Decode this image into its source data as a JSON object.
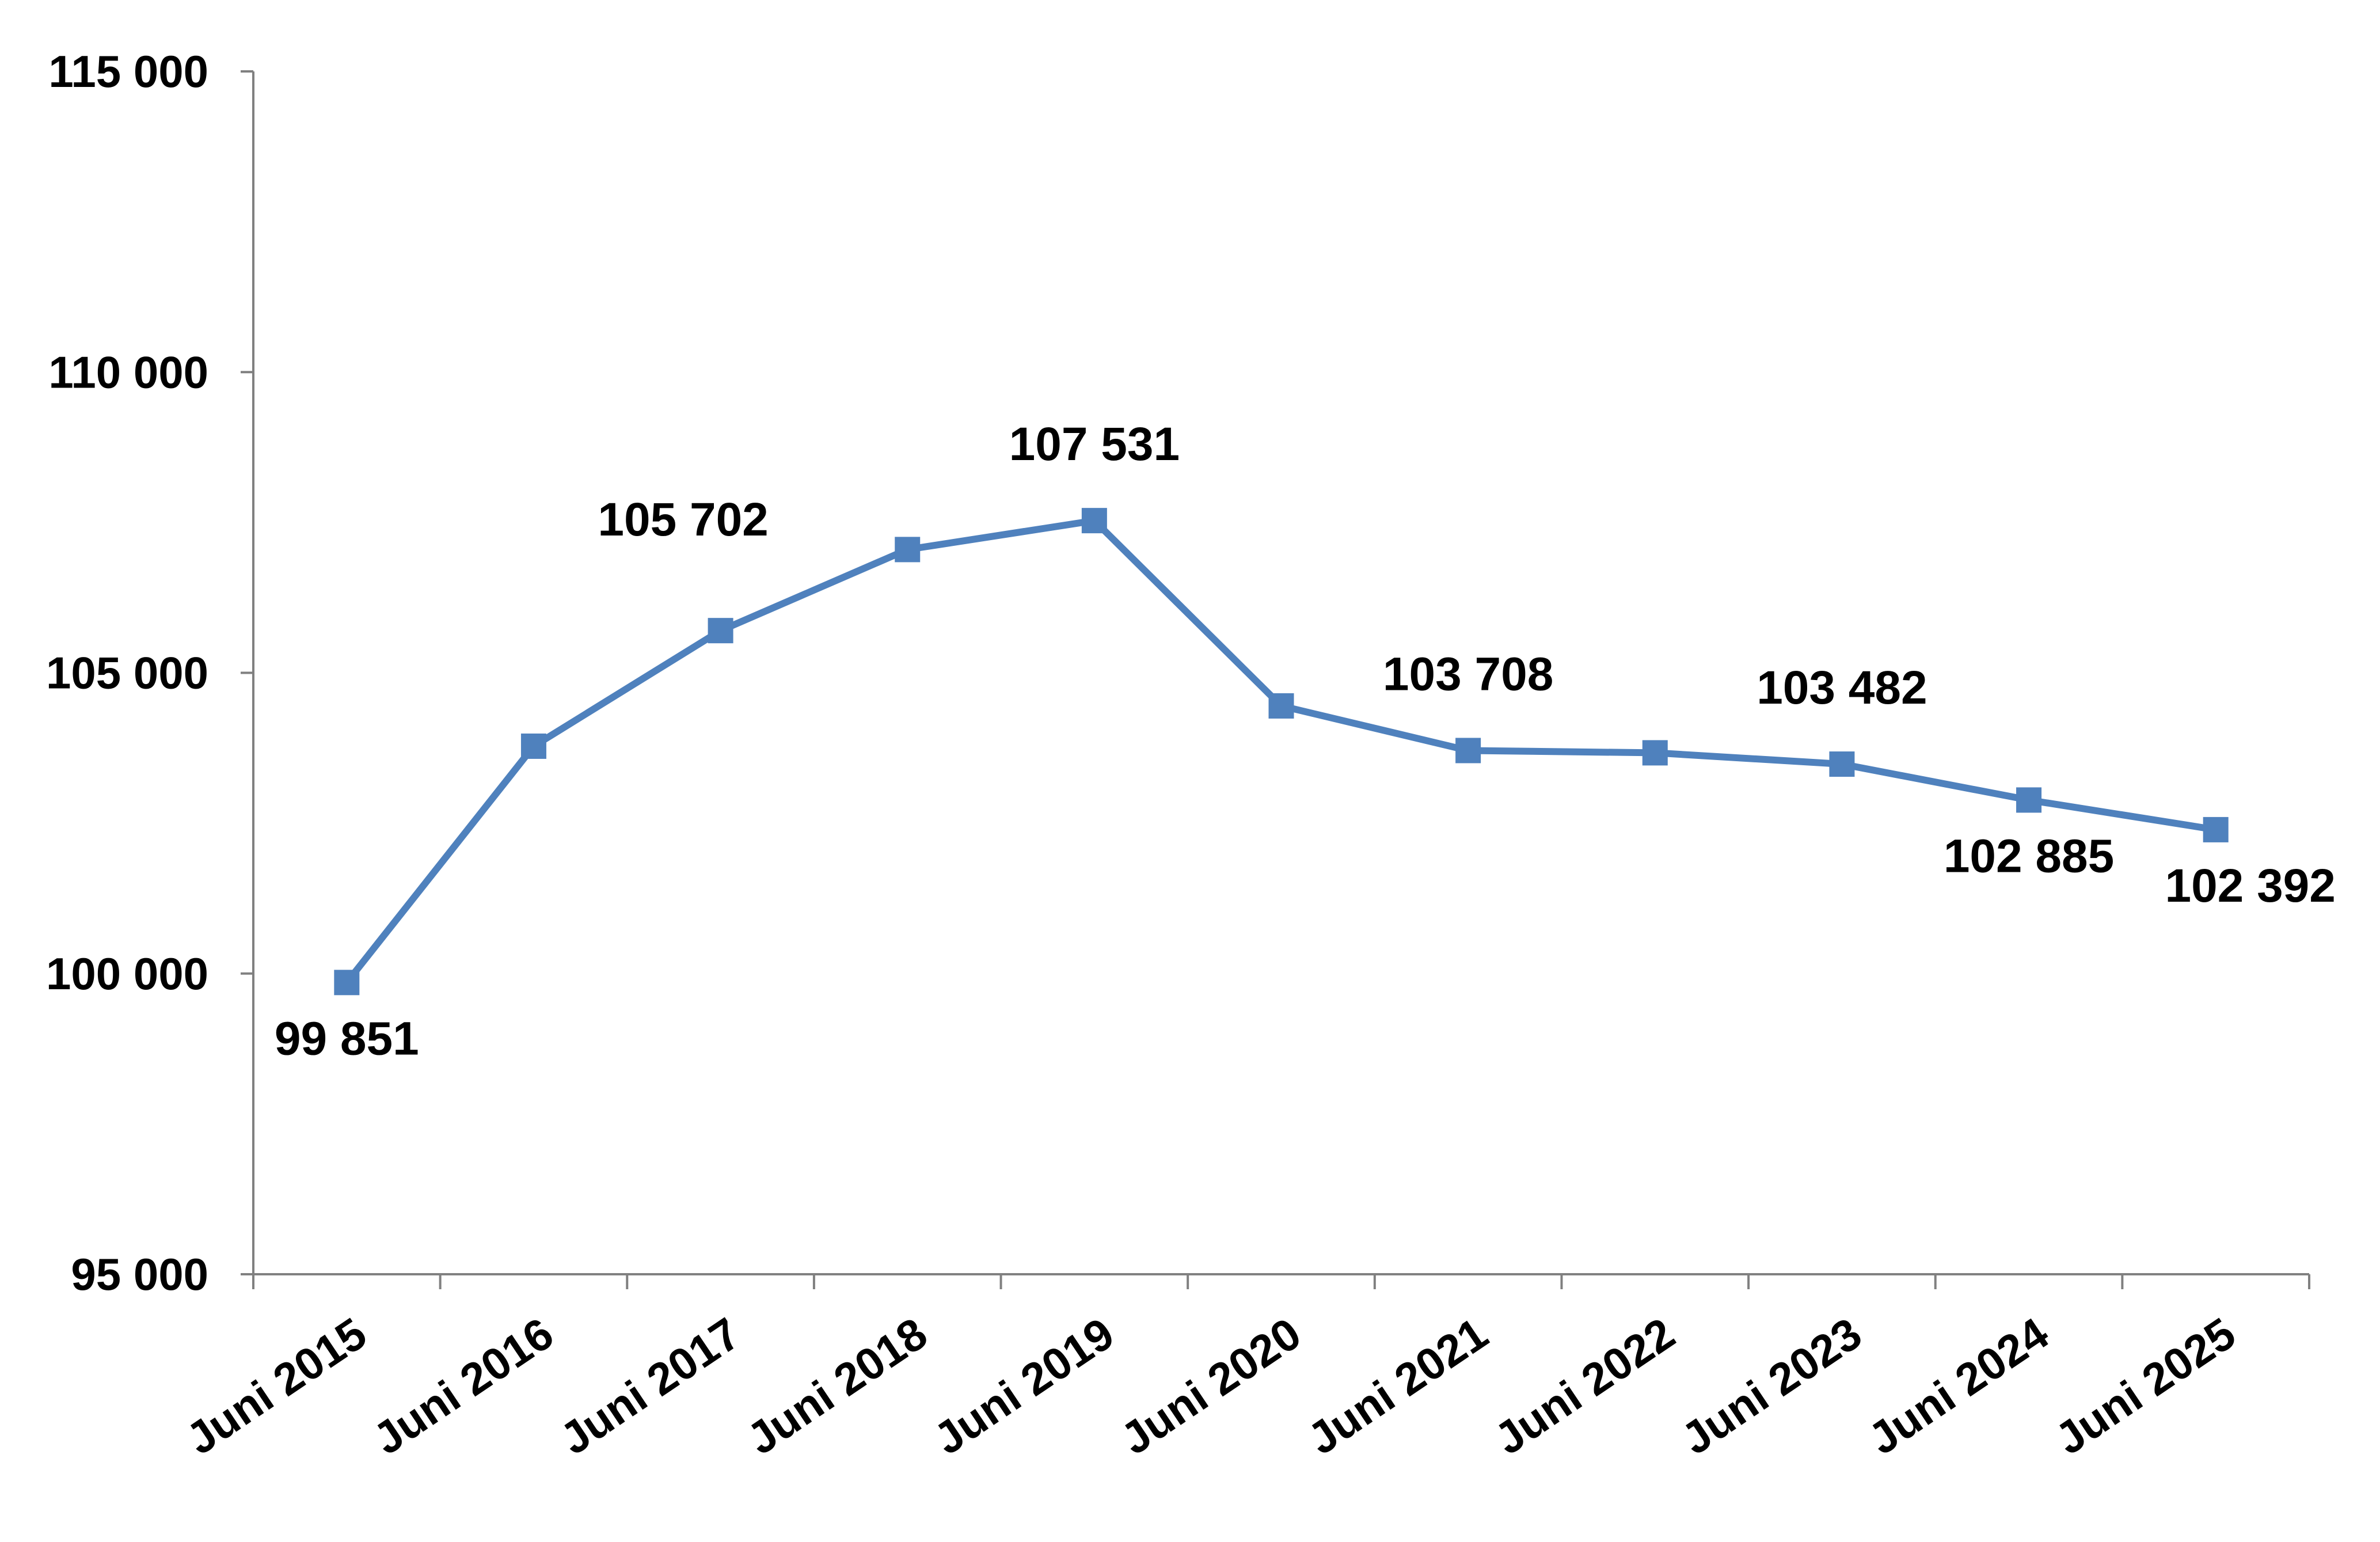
{
  "chart_data": {
    "type": "line",
    "title": "",
    "xlabel": "",
    "ylabel": "",
    "categories": [
      "Juni 2015",
      "Juni 2016",
      "Juni 2017",
      "Juni 2018",
      "Juni 2019",
      "Juni 2020",
      "Juni 2021",
      "Juni 2022",
      "Juni 2023",
      "Juni 2024",
      "Juni 2025"
    ],
    "series": [
      {
        "values": [
          99851,
          103780,
          105702,
          107050,
          107531,
          104450,
          103708,
          103670,
          103482,
          102885,
          102392
        ],
        "color": "#4f81bd",
        "marker": "square"
      }
    ],
    "data_labels": [
      {
        "index": 0,
        "text": "99 851",
        "placement": "below"
      },
      {
        "index": 2,
        "text": "105 702",
        "placement": "above-left"
      },
      {
        "index": 4,
        "text": "107 531",
        "placement": "above"
      },
      {
        "index": 6,
        "text": "103 708",
        "placement": "above"
      },
      {
        "index": 8,
        "text": "103 482",
        "placement": "above"
      },
      {
        "index": 9,
        "text": "102 885",
        "placement": "below"
      },
      {
        "index": 10,
        "text": "102 392",
        "placement": "below"
      }
    ],
    "ylim": [
      95000,
      115000
    ],
    "yticks": [
      95000,
      100000,
      105000,
      110000,
      115000
    ],
    "ytick_labels": [
      "95 000",
      "100 000",
      "105 000",
      "110 000",
      "115 000"
    ],
    "grid": false,
    "legend": "none",
    "axis_color": "#808080"
  }
}
